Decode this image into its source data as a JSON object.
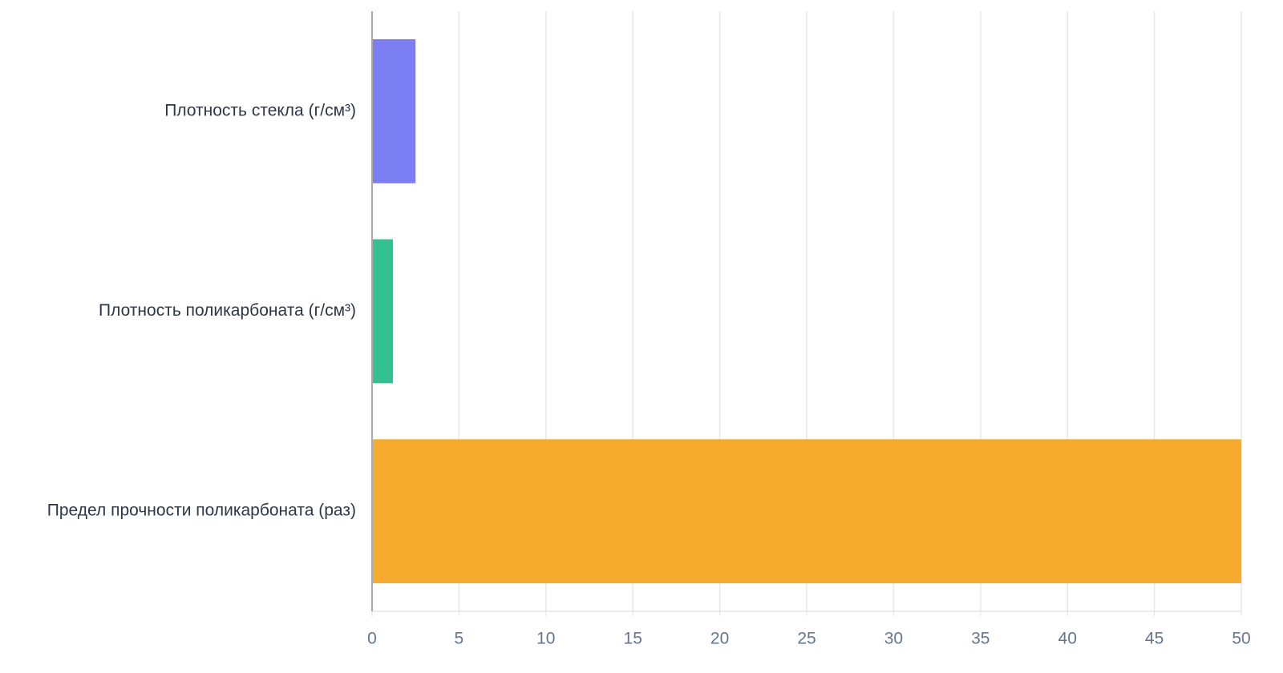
{
  "chart_data": {
    "type": "hbar",
    "categories": [
      "Плотность стекла (г/см³)",
      "Плотность поликарбоната (г/см³)",
      "Предел прочности поликарбоната (раз)"
    ],
    "values": [
      2.5,
      1.2,
      50
    ],
    "colors": [
      "#7577f2",
      "#27be8b",
      "#f5a623"
    ],
    "xlim": [
      0,
      50
    ],
    "xticks": [
      0,
      5,
      10,
      15,
      20,
      25,
      30,
      35,
      40,
      45,
      50
    ],
    "grid": true
  }
}
